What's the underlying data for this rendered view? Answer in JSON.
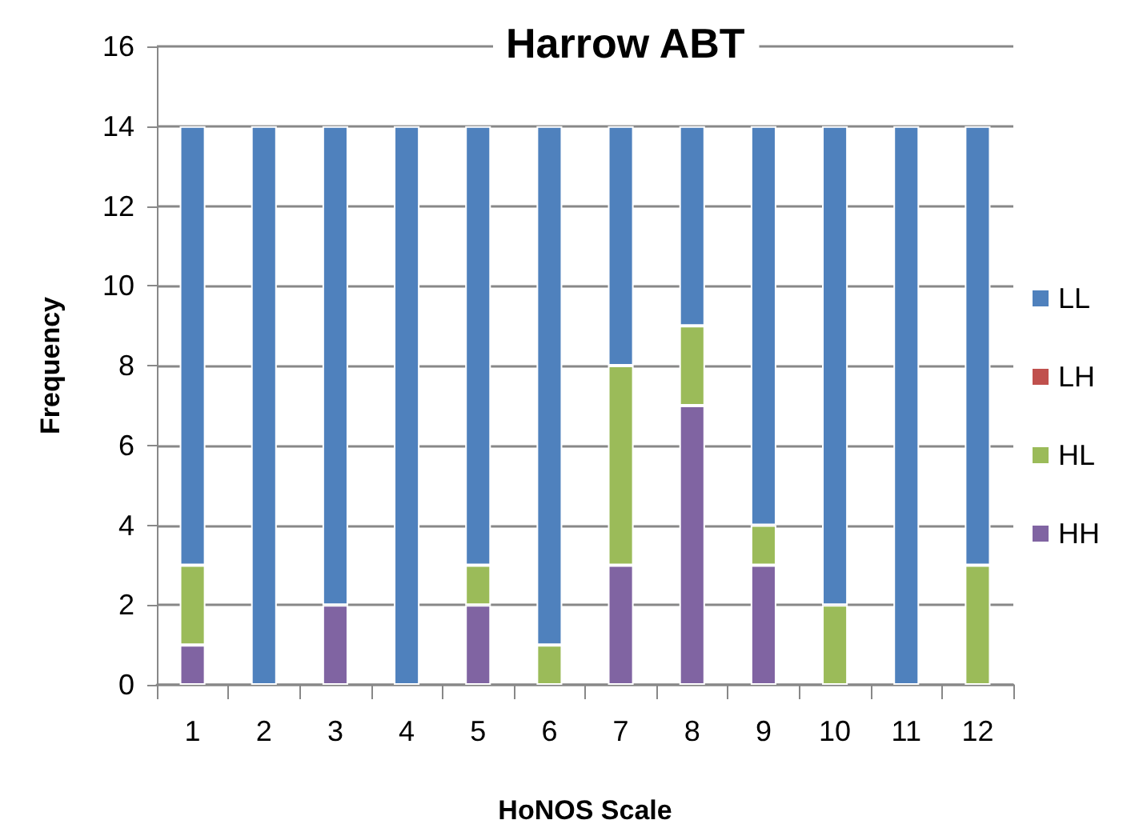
{
  "chart_data": {
    "type": "bar",
    "title": "Harrow ABT",
    "xlabel": "HoNOS Scale",
    "ylabel": "Frequency",
    "categories": [
      "1",
      "2",
      "3",
      "4",
      "5",
      "6",
      "7",
      "8",
      "9",
      "10",
      "11",
      "12"
    ],
    "stacked": true,
    "series": [
      {
        "name": "HH",
        "color": "#8064a2",
        "values": [
          1,
          0,
          2,
          0,
          2,
          0,
          3,
          7,
          3,
          0,
          0,
          0
        ]
      },
      {
        "name": "HL",
        "color": "#9bbb59",
        "values": [
          2,
          0,
          0,
          0,
          1,
          1,
          5,
          2,
          1,
          2,
          0,
          3
        ]
      },
      {
        "name": "LH",
        "color": "#c0504d",
        "values": [
          0,
          0,
          0,
          0,
          0,
          0,
          0,
          0,
          0,
          0,
          0,
          0
        ]
      },
      {
        "name": "LL",
        "color": "#4f81bd",
        "values": [
          11,
          14,
          12,
          14,
          11,
          13,
          6,
          5,
          10,
          12,
          14,
          11
        ]
      }
    ],
    "ylim": [
      0,
      16
    ],
    "yticks": [
      0,
      2,
      4,
      6,
      8,
      10,
      12,
      14,
      16
    ],
    "grid": "y",
    "legend": "right"
  }
}
